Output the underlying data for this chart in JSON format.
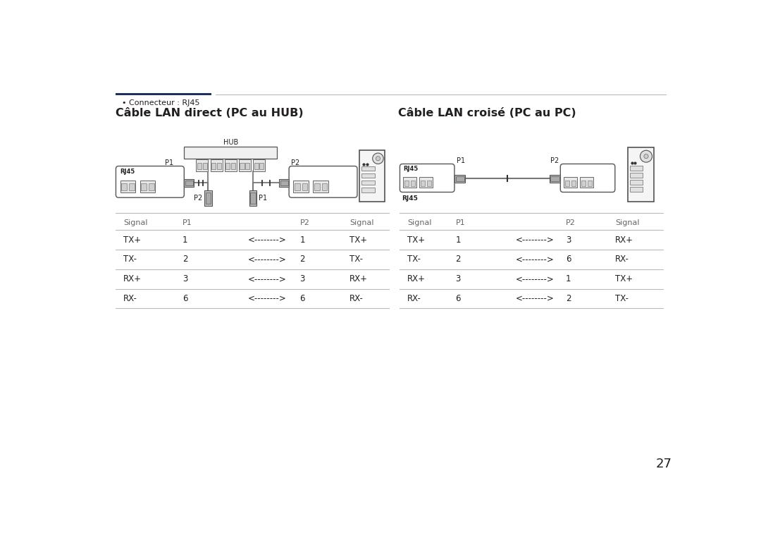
{
  "bg_color": "#ffffff",
  "text_color": "#231f20",
  "dark_blue": "#1e3060",
  "gray_line": "#bbbbbb",
  "page_number": "27",
  "bullet_text": "Connecteur : RJ45",
  "title_left": "Câble LAN direct (PC au HUB)",
  "title_right": "Câble LAN croisé (PC au PC)",
  "table_left": {
    "headers": [
      "Signal",
      "P1",
      "",
      "P2",
      "Signal"
    ],
    "rows": [
      [
        "TX+",
        "1",
        "<-------->",
        "1",
        "TX+"
      ],
      [
        "TX-",
        "2",
        "<-------->",
        "2",
        "TX-"
      ],
      [
        "RX+",
        "3",
        "<-------->",
        "3",
        "RX+"
      ],
      [
        "RX-",
        "6",
        "<-------->",
        "6",
        "RX-"
      ]
    ]
  },
  "table_right": {
    "headers": [
      "Signal",
      "P1",
      "",
      "P2",
      "Signal"
    ],
    "rows": [
      [
        "TX+",
        "1",
        "<-------->",
        "3",
        "RX+"
      ],
      [
        "TX-",
        "2",
        "<-------->",
        "6",
        "RX-"
      ],
      [
        "RX+",
        "3",
        "<-------->",
        "1",
        "TX+"
      ],
      [
        "RX-",
        "6",
        "<-------->",
        "2",
        "TX-"
      ]
    ]
  }
}
